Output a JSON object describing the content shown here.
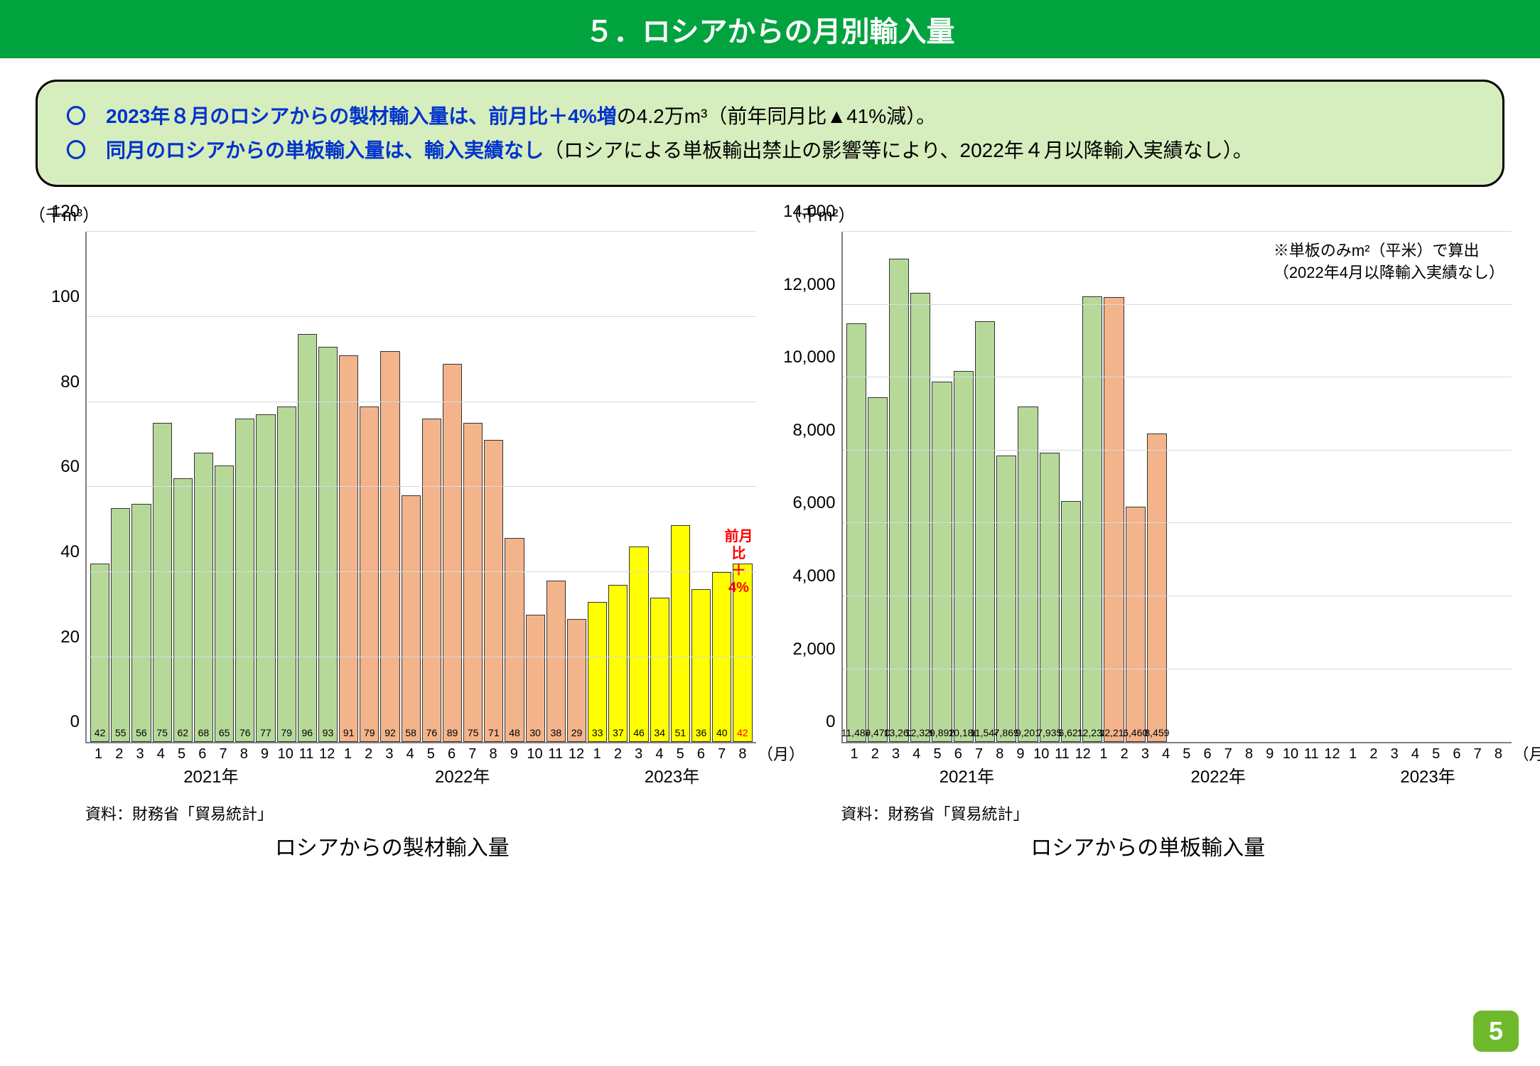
{
  "header": {
    "title": "５．ロシアからの月別輸入量"
  },
  "summary": {
    "line1_prefix": "〇　",
    "line1_blue": "2023年８月のロシアからの製材輸入量は、前月比＋4%増",
    "line1_rest": "の4.2万m³（前年同月比▲41%減）。",
    "line2_prefix": "〇　",
    "line2_blue": "同月のロシアからの単板輸入量は、輸入実績なし",
    "line2_rest": "（ロシアによる単板輸出禁止の影響等により、2022年４月以降輸入実績なし）。"
  },
  "chart1": {
    "type": "bar",
    "y_unit": "（千m³）",
    "ylim": [
      0,
      120
    ],
    "ytick_step": 20,
    "yticks": [
      0,
      20,
      40,
      60,
      80,
      100,
      120
    ],
    "x_month_unit": "（月）",
    "colors": {
      "2021": "#b6d99a",
      "2022": "#f3b48b",
      "2023": "#ffff00",
      "border": "#333333",
      "grid": "#d9d9d9",
      "axis": "#808080"
    },
    "years": [
      "2021年",
      "2022年",
      "2023年"
    ],
    "year_spans": [
      12,
      12,
      8
    ],
    "bars": [
      {
        "m": "1",
        "v": 42,
        "c": "2021"
      },
      {
        "m": "2",
        "v": 55,
        "c": "2021"
      },
      {
        "m": "3",
        "v": 56,
        "c": "2021"
      },
      {
        "m": "4",
        "v": 75,
        "c": "2021"
      },
      {
        "m": "5",
        "v": 62,
        "c": "2021"
      },
      {
        "m": "6",
        "v": 68,
        "c": "2021"
      },
      {
        "m": "7",
        "v": 65,
        "c": "2021"
      },
      {
        "m": "8",
        "v": 76,
        "c": "2021"
      },
      {
        "m": "9",
        "v": 77,
        "c": "2021"
      },
      {
        "m": "10",
        "v": 79,
        "c": "2021"
      },
      {
        "m": "11",
        "v": 96,
        "c": "2021"
      },
      {
        "m": "12",
        "v": 93,
        "c": "2021"
      },
      {
        "m": "1",
        "v": 91,
        "c": "2022"
      },
      {
        "m": "2",
        "v": 79,
        "c": "2022"
      },
      {
        "m": "3",
        "v": 92,
        "c": "2022"
      },
      {
        "m": "4",
        "v": 58,
        "c": "2022"
      },
      {
        "m": "5",
        "v": 76,
        "c": "2022"
      },
      {
        "m": "6",
        "v": 89,
        "c": "2022"
      },
      {
        "m": "7",
        "v": 75,
        "c": "2022"
      },
      {
        "m": "8",
        "v": 71,
        "c": "2022"
      },
      {
        "m": "9",
        "v": 48,
        "c": "2022"
      },
      {
        "m": "10",
        "v": 30,
        "c": "2022"
      },
      {
        "m": "11",
        "v": 38,
        "c": "2022"
      },
      {
        "m": "12",
        "v": 29,
        "c": "2022"
      },
      {
        "m": "1",
        "v": 33,
        "c": "2023"
      },
      {
        "m": "2",
        "v": 37,
        "c": "2023"
      },
      {
        "m": "3",
        "v": 46,
        "c": "2023"
      },
      {
        "m": "4",
        "v": 34,
        "c": "2023"
      },
      {
        "m": "5",
        "v": 51,
        "c": "2023"
      },
      {
        "m": "6",
        "v": 36,
        "c": "2023"
      },
      {
        "m": "7",
        "v": 40,
        "c": "2023"
      },
      {
        "m": "8",
        "v": 42,
        "c": "2023"
      }
    ],
    "annotation": {
      "text1": "前月比",
      "text2": "＋4%"
    },
    "last_label_color": "#ff0000",
    "source": "資料：財務省「貿易統計」",
    "title": "ロシアからの製材輸入量"
  },
  "chart2": {
    "type": "bar",
    "y_unit": "（千m²）",
    "ylim": [
      0,
      14000
    ],
    "ytick_step": 2000,
    "yticks": [
      0,
      2000,
      4000,
      6000,
      8000,
      10000,
      12000,
      14000
    ],
    "x_month_unit": "（月）",
    "note_line1": "※単板のみm²（平米）で算出",
    "note_line2": "（2022年4月以降輸入実績なし）",
    "colors": {
      "2021": "#b6d99a",
      "2022": "#f3b48b",
      "2023": "#ffff00",
      "border": "#333333",
      "grid": "#d9d9d9",
      "axis": "#808080"
    },
    "years": [
      "2021年",
      "2022年",
      "2023年"
    ],
    "year_spans": [
      12,
      12,
      8
    ],
    "bars": [
      {
        "m": "1",
        "v": 11484,
        "c": "2021",
        "lbl": "11,484"
      },
      {
        "m": "2",
        "v": 9470,
        "c": "2021",
        "lbl": "9,470"
      },
      {
        "m": "3",
        "v": 13262,
        "c": "2021",
        "lbl": "13,262"
      },
      {
        "m": "4",
        "v": 12326,
        "c": "2021",
        "lbl": "12,326"
      },
      {
        "m": "5",
        "v": 9892,
        "c": "2021",
        "lbl": "9,892"
      },
      {
        "m": "6",
        "v": 10186,
        "c": "2021",
        "lbl": "10,186"
      },
      {
        "m": "7",
        "v": 11544,
        "c": "2021",
        "lbl": "11,544"
      },
      {
        "m": "8",
        "v": 7869,
        "c": "2021",
        "lbl": "7,869"
      },
      {
        "m": "9",
        "v": 9201,
        "c": "2021",
        "lbl": "9,201"
      },
      {
        "m": "10",
        "v": 7935,
        "c": "2021",
        "lbl": "7,935"
      },
      {
        "m": "11",
        "v": 6621,
        "c": "2021",
        "lbl": "6,621"
      },
      {
        "m": "12",
        "v": 12238,
        "c": "2021",
        "lbl": "12,238"
      },
      {
        "m": "1",
        "v": 12211,
        "c": "2022",
        "lbl": "12,211"
      },
      {
        "m": "2",
        "v": 6460,
        "c": "2022",
        "lbl": "6,460"
      },
      {
        "m": "3",
        "v": 8459,
        "c": "2022",
        "lbl": "8,459"
      },
      {
        "m": "4",
        "v": 0,
        "c": "2022"
      },
      {
        "m": "5",
        "v": 0,
        "c": "2022"
      },
      {
        "m": "6",
        "v": 0,
        "c": "2022"
      },
      {
        "m": "7",
        "v": 0,
        "c": "2022"
      },
      {
        "m": "8",
        "v": 0,
        "c": "2022"
      },
      {
        "m": "9",
        "v": 0,
        "c": "2022"
      },
      {
        "m": "10",
        "v": 0,
        "c": "2022"
      },
      {
        "m": "11",
        "v": 0,
        "c": "2022"
      },
      {
        "m": "12",
        "v": 0,
        "c": "2022"
      },
      {
        "m": "1",
        "v": 0,
        "c": "2023"
      },
      {
        "m": "2",
        "v": 0,
        "c": "2023"
      },
      {
        "m": "3",
        "v": 0,
        "c": "2023"
      },
      {
        "m": "4",
        "v": 0,
        "c": "2023"
      },
      {
        "m": "5",
        "v": 0,
        "c": "2023"
      },
      {
        "m": "6",
        "v": 0,
        "c": "2023"
      },
      {
        "m": "7",
        "v": 0,
        "c": "2023"
      },
      {
        "m": "8",
        "v": 0,
        "c": "2023"
      }
    ],
    "source": "資料：財務省「貿易統計」",
    "title": "ロシアからの単板輸入量"
  },
  "page_number": "5"
}
